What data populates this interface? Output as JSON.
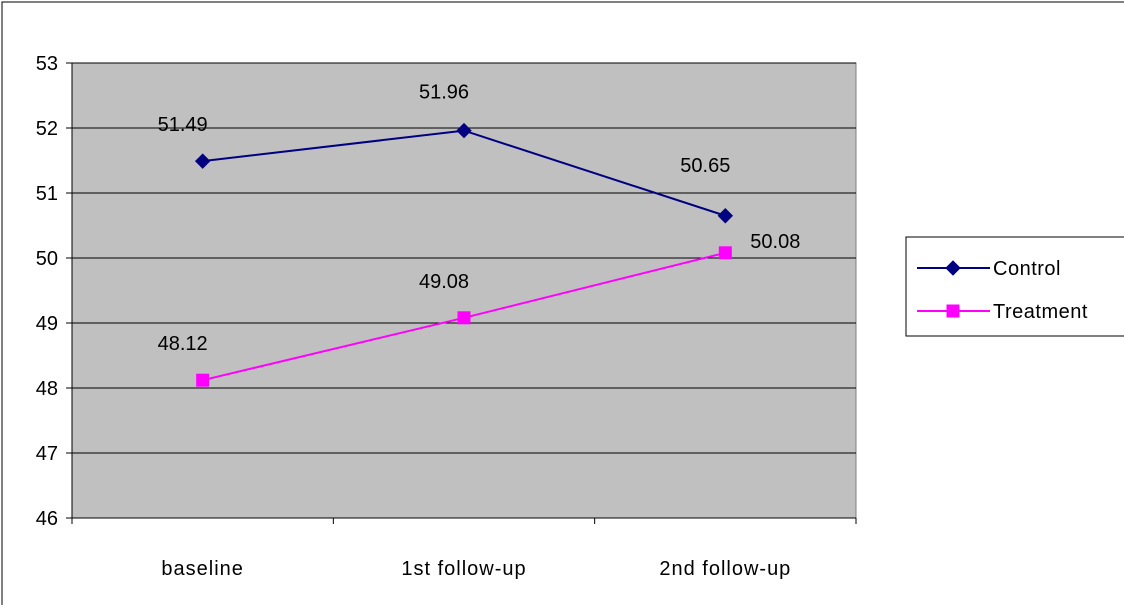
{
  "chart_data": {
    "type": "line",
    "title": "",
    "xlabel": "",
    "ylabel": "",
    "categories": [
      "baseline",
      "1st follow-up",
      "2nd follow-up"
    ],
    "ylim": [
      46,
      53
    ],
    "yticks": [
      46,
      47,
      48,
      49,
      50,
      51,
      52,
      53
    ],
    "grid": true,
    "plot_background": "#c0c0c0",
    "legend_position": "right",
    "series": [
      {
        "name": "Control",
        "values": [
          51.49,
          51.96,
          50.65
        ],
        "labels": [
          "51.49",
          "51.96",
          "50.65"
        ],
        "color": "#000080",
        "marker": "diamond"
      },
      {
        "name": "Treatment",
        "values": [
          48.12,
          49.08,
          50.08
        ],
        "labels": [
          "48.12",
          "49.08",
          "50.08"
        ],
        "color": "#ff00ff",
        "marker": "square"
      }
    ]
  }
}
